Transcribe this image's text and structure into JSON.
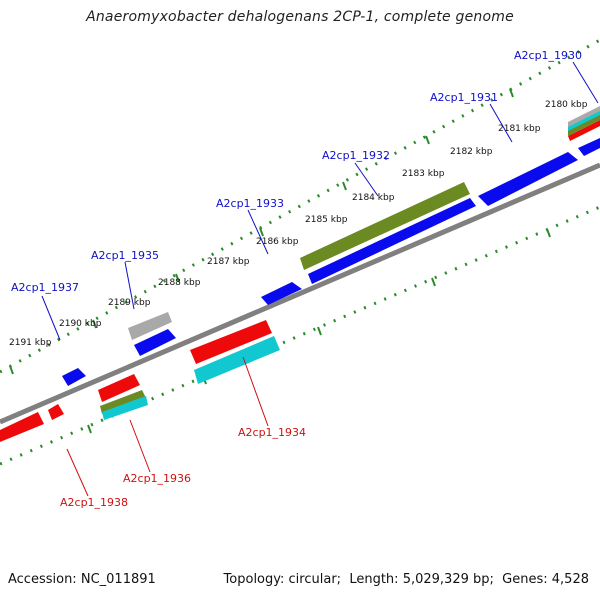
{
  "title": "Anaeromyxobacter dehalogenans 2CP-1, complete genome",
  "footer": {
    "accession_label": "Accession:",
    "accession": "NC_011891",
    "topology_label": "Topology:",
    "topology": "circular",
    "length_label": "Length:",
    "length": "5,029,329 bp",
    "genes_label": "Genes:",
    "genes": "4,528"
  },
  "colors": {
    "forward_gene": "#0a0aee",
    "reverse_gene": "#ee0a0a",
    "cyan_feature": "#11c8d0",
    "olive_feature": "#6b8a22",
    "gray_feature": "#a9a9a9",
    "backbone": "#808080",
    "ticks": "#2b8a2b",
    "label_forward": "#1010c8",
    "label_reverse": "#d01010"
  },
  "scale_labels": [
    "2180 kbp",
    "2181 kbp",
    "2182 kbp",
    "2183 kbp",
    "2184 kbp",
    "2185 kbp",
    "2186 kbp",
    "2187 kbp",
    "2188 kbp",
    "2189 kbp",
    "2190 kbp",
    "2191 kbp"
  ],
  "gene_labels_forward": [
    "A2cp1_1930",
    "A2cp1_1931",
    "A2cp1_1932",
    "A2cp1_1933",
    "A2cp1_1935",
    "A2cp1_1937"
  ],
  "gene_labels_reverse": [
    "A2cp1_1934",
    "A2cp1_1936",
    "A2cp1_1938"
  ]
}
